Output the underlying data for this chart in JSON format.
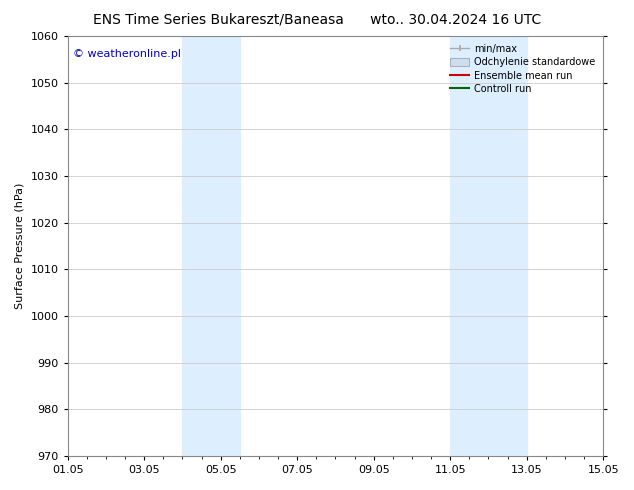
{
  "title_left": "ENS Time Series Bukareszt/Baneasa",
  "title_right": "wto.. 30.04.2024 16 UTC",
  "ylabel": "Surface Pressure (hPa)",
  "ylim": [
    970,
    1060
  ],
  "yticks": [
    970,
    980,
    990,
    1000,
    1010,
    1020,
    1030,
    1040,
    1050,
    1060
  ],
  "xtick_labels": [
    "01.05",
    "03.05",
    "05.05",
    "07.05",
    "09.05",
    "11.05",
    "13.05",
    "15.05"
  ],
  "xtick_positions": [
    0,
    2,
    4,
    6,
    8,
    10,
    12,
    14
  ],
  "xlim": [
    0,
    14
  ],
  "shaded_bands": [
    {
      "x_start": 3.0,
      "x_end": 4.5
    },
    {
      "x_start": 10.0,
      "x_end": 12.0
    }
  ],
  "shaded_color": "#ddeeff",
  "watermark_text": "© weatheronline.pl",
  "watermark_color": "#0000cc",
  "legend_entries": [
    {
      "label": "min/max",
      "color": "#aaaaaa",
      "linewidth": 1.5,
      "linestyle": "-"
    },
    {
      "label": "Odchylenie standardowe",
      "color": "#ccddee",
      "linewidth": 6,
      "linestyle": "-"
    },
    {
      "label": "Ensemble mean run",
      "color": "#cc0000",
      "linewidth": 1.5,
      "linestyle": "-"
    },
    {
      "label": "Controll run",
      "color": "#006600",
      "linewidth": 1.5,
      "linestyle": "-"
    }
  ],
  "background_color": "#ffffff",
  "grid_color": "#cccccc",
  "tick_color": "#000000",
  "title_fontsize": 10,
  "axis_label_fontsize": 8,
  "tick_fontsize": 8,
  "watermark_fontsize": 8,
  "legend_fontsize": 7
}
